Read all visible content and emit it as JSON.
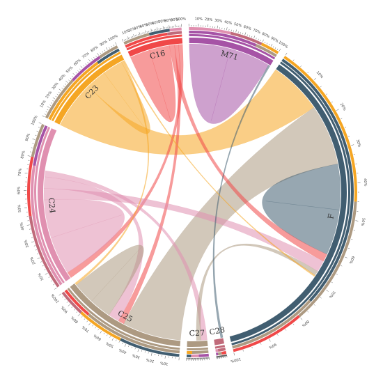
{
  "diagram": {
    "type": "chord",
    "groups": [
      {
        "id": "M71",
        "label": "M71",
        "color": "#a653a6",
        "value": 11
      },
      {
        "id": "F",
        "label": "F",
        "color": "#415e71",
        "value": 44
      },
      {
        "id": "C28",
        "label": "C28",
        "color": "#c06a7a",
        "value": 1.2
      },
      {
        "id": "C27",
        "label": "C27",
        "color": "#ad9a82",
        "value": 2.6
      },
      {
        "id": "C25",
        "label": "C25",
        "color": "#ad9a82",
        "value": 16
      },
      {
        "id": "C24",
        "label": "C24",
        "color": "#e090b0",
        "value": 20
      },
      {
        "id": "C23",
        "label": "C23",
        "color": "#f5a623",
        "value": 12
      },
      {
        "id": "C16",
        "label": "C16",
        "color": "#f04848",
        "value": 7
      }
    ],
    "percent_labels": [
      "10%",
      "20%",
      "30%",
      "40%",
      "50%",
      "60%",
      "70%",
      "80%",
      "90%",
      "100%"
    ],
    "flows": [
      {
        "source": "M71",
        "target": "M71",
        "value": 7,
        "color": "#a653a6"
      },
      {
        "source": "C23",
        "target": "F",
        "value": 7,
        "color": "#f5a623"
      },
      {
        "source": "C25",
        "target": "F",
        "value": 8,
        "color": "#ad9a82"
      },
      {
        "source": "F",
        "target": "F",
        "value": 6,
        "color": "#415e71"
      },
      {
        "source": "C16",
        "target": "C16",
        "value": 4,
        "color": "#f04848"
      },
      {
        "source": "C16",
        "target": "F",
        "value": 1,
        "color": "#f04848"
      },
      {
        "source": "C16",
        "target": "C25",
        "value": 0.8,
        "color": "#f04848"
      },
      {
        "source": "C16",
        "target": "C24",
        "value": 0.8,
        "color": "#f04848"
      },
      {
        "source": "C23",
        "target": "C23",
        "value": 3,
        "color": "#f5a623"
      },
      {
        "source": "C24",
        "target": "C24",
        "value": 5,
        "color": "#e090b0"
      },
      {
        "source": "C24",
        "target": "F",
        "value": 1.5,
        "color": "#e090b0"
      },
      {
        "source": "C24",
        "target": "C25",
        "value": 1.5,
        "color": "#e090b0"
      },
      {
        "source": "C24",
        "target": "C27",
        "value": 0.8,
        "color": "#e090b0"
      },
      {
        "source": "C25",
        "target": "C25",
        "value": 3,
        "color": "#ad9a82"
      },
      {
        "source": "C27",
        "target": "F",
        "value": 0.6,
        "color": "#ad9a82"
      },
      {
        "source": "C28",
        "target": "M71",
        "value": 0.3,
        "color": "#415e71"
      },
      {
        "source": "C23",
        "target": "C25",
        "value": 0.3,
        "color": "#f5a623"
      },
      {
        "source": "C23",
        "target": "F",
        "value": 0.2,
        "color": "#f5a623"
      }
    ]
  }
}
